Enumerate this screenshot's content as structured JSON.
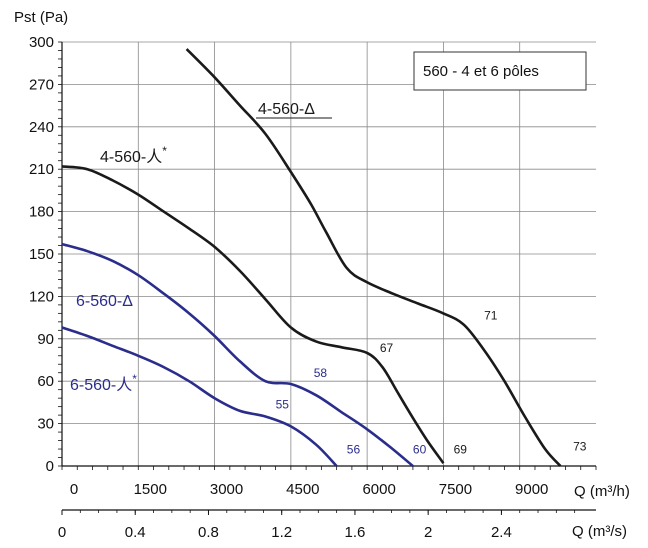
{
  "chart_data": {
    "type": "line",
    "title": "560 - 4 et 6 pôles",
    "ylabel": "Pst (Pa)",
    "xlabel_top": "Q (m³/h)",
    "xlabel_bottom": "Q (m³/s)",
    "xlim": [
      0,
      10500
    ],
    "ylim": [
      0,
      300
    ],
    "x_ticks_m3h": [
      "0",
      "1500",
      "3000",
      "4500",
      "6000",
      "7500",
      "9000"
    ],
    "x_ticks_m3s": [
      "0",
      "0.4",
      "0.8",
      "1.2",
      "1.6",
      "2",
      "2.4"
    ],
    "y_ticks": [
      "0",
      "30",
      "60",
      "90",
      "120",
      "150",
      "180",
      "210",
      "240",
      "270",
      "300"
    ],
    "grid": true,
    "series": [
      {
        "name": "4-560-Δ",
        "label_main": "4-560-Δ",
        "color": "#1a1a1a",
        "points": [
          [
            2450,
            295
          ],
          [
            3000,
            275
          ],
          [
            3500,
            255
          ],
          [
            4000,
            235
          ],
          [
            4500,
            208
          ],
          [
            4900,
            185
          ],
          [
            5200,
            165
          ],
          [
            5600,
            140
          ],
          [
            6000,
            130
          ],
          [
            6500,
            122
          ],
          [
            7000,
            115
          ],
          [
            7500,
            108
          ],
          [
            7900,
            100
          ],
          [
            8300,
            82
          ],
          [
            8700,
            60
          ],
          [
            9100,
            35
          ],
          [
            9500,
            12
          ],
          [
            9800,
            0
          ]
        ]
      },
      {
        "name": "4-560-人*",
        "label_main": "4-560-人",
        "label_sup": "*",
        "color": "#1a1a1a",
        "points": [
          [
            0,
            212
          ],
          [
            500,
            210
          ],
          [
            1000,
            202
          ],
          [
            1500,
            192
          ],
          [
            2000,
            180
          ],
          [
            2500,
            168
          ],
          [
            3000,
            155
          ],
          [
            3500,
            138
          ],
          [
            4000,
            118
          ],
          [
            4500,
            98
          ],
          [
            5000,
            88
          ],
          [
            5500,
            84
          ],
          [
            6000,
            80
          ],
          [
            6300,
            70
          ],
          [
            6600,
            52
          ],
          [
            6900,
            34
          ],
          [
            7200,
            17
          ],
          [
            7500,
            2
          ]
        ]
      },
      {
        "name": "6-560-Δ",
        "label_main": "6-560-Δ",
        "color": "#2b2d8c",
        "points": [
          [
            0,
            157
          ],
          [
            500,
            152
          ],
          [
            1000,
            145
          ],
          [
            1500,
            135
          ],
          [
            2000,
            122
          ],
          [
            2500,
            108
          ],
          [
            3000,
            92
          ],
          [
            3500,
            74
          ],
          [
            4000,
            60
          ],
          [
            4500,
            58
          ],
          [
            5000,
            50
          ],
          [
            5500,
            38
          ],
          [
            6000,
            26
          ],
          [
            6500,
            12
          ],
          [
            6900,
            0
          ]
        ]
      },
      {
        "name": "6-560-人*",
        "label_main": "6-560-人",
        "label_sup": "*",
        "color": "#2b2d8c",
        "points": [
          [
            0,
            98
          ],
          [
            500,
            92
          ],
          [
            1000,
            85
          ],
          [
            1500,
            78
          ],
          [
            2000,
            70
          ],
          [
            2500,
            60
          ],
          [
            3000,
            48
          ],
          [
            3500,
            39
          ],
          [
            4000,
            35
          ],
          [
            4500,
            28
          ],
          [
            5000,
            15
          ],
          [
            5400,
            0
          ]
        ]
      }
    ],
    "annotations": [
      {
        "text": "71",
        "x": 8300,
        "y": 101,
        "color": "#1a1a1a"
      },
      {
        "text": "73",
        "x": 10050,
        "y": 8,
        "color": "#1a1a1a"
      },
      {
        "text": "67",
        "x": 6250,
        "y": 78,
        "color": "#1a1a1a"
      },
      {
        "text": "69",
        "x": 7700,
        "y": 6,
        "color": "#1a1a1a"
      },
      {
        "text": "58",
        "x": 4950,
        "y": 60,
        "color": "#2b2d8c"
      },
      {
        "text": "55",
        "x": 4200,
        "y": 38,
        "color": "#2b2d8c"
      },
      {
        "text": "60",
        "x": 6900,
        "y": 6,
        "color": "#2b2d8c"
      },
      {
        "text": "56",
        "x": 5600,
        "y": 6,
        "color": "#2b2d8c"
      }
    ]
  }
}
